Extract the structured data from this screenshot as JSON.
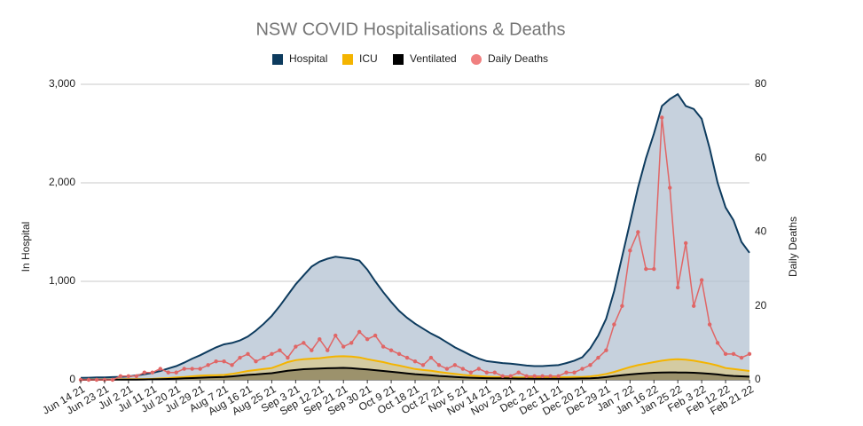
{
  "chart_data": {
    "type": "area-line",
    "title": "NSW COVID Hospitalisations & Deaths",
    "y_label": "In Hospital",
    "y2_label": "Daily Deaths",
    "categories": [
      "Jun 14 21",
      null,
      null,
      "Jun 23 21",
      null,
      null,
      "Jul 2 21",
      null,
      null,
      "Jul 11 21",
      null,
      null,
      "Jul 20 21",
      null,
      null,
      "Jul 29 21",
      null,
      null,
      "Aug 7 21",
      null,
      null,
      "Aug 16 21",
      null,
      null,
      "Aug 25 21",
      null,
      null,
      "Sep 3 21",
      null,
      null,
      "Sep 12 21",
      null,
      null,
      "Sep 21 21",
      null,
      null,
      "Sep 30 21",
      null,
      null,
      "Oct 9 21",
      null,
      null,
      "Oct 18 21",
      null,
      null,
      "Oct 27 21",
      null,
      null,
      "Nov 5 21",
      null,
      null,
      "Nov 14 21",
      null,
      null,
      "Nov 23 21",
      null,
      null,
      "Dec 2 21",
      null,
      null,
      "Dec 11 21",
      null,
      null,
      "Dec 20 21",
      null,
      null,
      "Dec 29 21",
      null,
      null,
      "Jan 7 22",
      null,
      null,
      "Jan 16 22",
      null,
      null,
      "Jan 25 22",
      null,
      null,
      "Feb 3 22",
      null,
      null,
      "Feb 12 22",
      null,
      null,
      "Feb 21 22"
    ],
    "series": [
      {
        "name": "Hospital",
        "color": "#0d3b5e",
        "fill": "#b3c2d1",
        "values": [
          20,
          22,
          24,
          25,
          28,
          31,
          35,
          45,
          58,
          70,
          90,
          115,
          140,
          175,
          215,
          250,
          290,
          330,
          360,
          375,
          400,
          440,
          500,
          570,
          650,
          750,
          860,
          970,
          1060,
          1150,
          1200,
          1230,
          1250,
          1240,
          1230,
          1210,
          1120,
          1000,
          890,
          790,
          700,
          630,
          570,
          520,
          470,
          430,
          380,
          330,
          290,
          250,
          215,
          190,
          180,
          170,
          165,
          155,
          145,
          140,
          140,
          145,
          150,
          170,
          195,
          230,
          320,
          450,
          620,
          900,
          1250,
          1600,
          1950,
          2250,
          2500,
          2780,
          2850,
          2900,
          2780,
          2750,
          2650,
          2350,
          2000,
          1750,
          1620,
          1400,
          1290
        ]
      },
      {
        "name": "ICU",
        "color": "#f4b400",
        "fill": "#d8c88e",
        "values": [
          0,
          1,
          2,
          3,
          4,
          5,
          6,
          7,
          8,
          10,
          14,
          18,
          25,
          30,
          36,
          42,
          46,
          48,
          50,
          60,
          75,
          90,
          100,
          110,
          120,
          150,
          180,
          200,
          210,
          215,
          220,
          230,
          238,
          240,
          236,
          228,
          210,
          195,
          180,
          160,
          145,
          128,
          110,
          100,
          92,
          80,
          70,
          60,
          50,
          44,
          38,
          32,
          30,
          28,
          26,
          25,
          25,
          25,
          24,
          25,
          26,
          27,
          29,
          30,
          35,
          45,
          60,
          80,
          105,
          130,
          150,
          165,
          180,
          195,
          205,
          210,
          205,
          195,
          180,
          165,
          145,
          120,
          110,
          100,
          90
        ]
      },
      {
        "name": "Ventilated",
        "color": "#000000",
        "fill": "#8a7f5a",
        "values": [
          0,
          0,
          1,
          1,
          2,
          2,
          3,
          3,
          4,
          5,
          7,
          9,
          12,
          15,
          18,
          22,
          25,
          27,
          30,
          35,
          42,
          50,
          55,
          62,
          68,
          80,
          92,
          100,
          108,
          112,
          115,
          118,
          120,
          122,
          118,
          112,
          105,
          98,
          90,
          82,
          75,
          66,
          58,
          52,
          46,
          40,
          35,
          30,
          25,
          22,
          19,
          17,
          16,
          15,
          14,
          13,
          13,
          12,
          12,
          12,
          12,
          12,
          13,
          14,
          16,
          20,
          28,
          38,
          48,
          55,
          62,
          68,
          72,
          75,
          76,
          75,
          74,
          72,
          68,
          62,
          55,
          45,
          40,
          36,
          32
        ]
      },
      {
        "name": "Daily Deaths",
        "color": "#e06666",
        "marker": "#f08080",
        "axis": "y2",
        "values": [
          0,
          0,
          0,
          0,
          0,
          1,
          1,
          1,
          2,
          2,
          3,
          2,
          2,
          3,
          3,
          3,
          4,
          5,
          5,
          4,
          6,
          7,
          5,
          6,
          7,
          8,
          6,
          9,
          10,
          8,
          11,
          8,
          12,
          9,
          10,
          13,
          11,
          12,
          9,
          8,
          7,
          6,
          5,
          4,
          6,
          4,
          3,
          4,
          3,
          2,
          3,
          2,
          2,
          1,
          1,
          2,
          1,
          1,
          1,
          1,
          1,
          2,
          2,
          3,
          4,
          6,
          8,
          15,
          20,
          35,
          40,
          30,
          30,
          71,
          52,
          25,
          37,
          20,
          27,
          15,
          10,
          7,
          7,
          6,
          7
        ]
      }
    ],
    "ylim": [
      0,
      3000
    ],
    "yticks": [
      0,
      {
        "value": 1000,
        "label": "1,000"
      },
      {
        "value": 2000,
        "label": "2,000"
      },
      {
        "value": 3000,
        "label": "3,000"
      }
    ],
    "y2lim": [
      0,
      80
    ],
    "y2ticks": [
      0,
      20,
      40,
      60,
      80
    ],
    "grid": true,
    "legend": "top"
  }
}
